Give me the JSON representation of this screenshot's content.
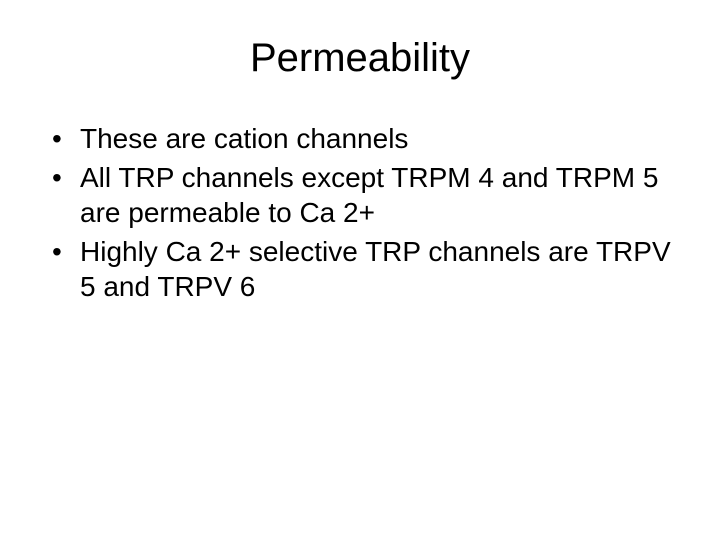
{
  "slide": {
    "title": "Permeability",
    "bullets": [
      "These are cation channels",
      "All TRP channels except TRPM 4 and TRPM 5 are permeable to Ca 2+",
      "Highly Ca 2+ selective TRP channels are TRPV 5 and TRPV 6"
    ],
    "title_fontsize": 40,
    "body_fontsize": 28,
    "text_color": "#000000",
    "background_color": "#ffffff"
  }
}
